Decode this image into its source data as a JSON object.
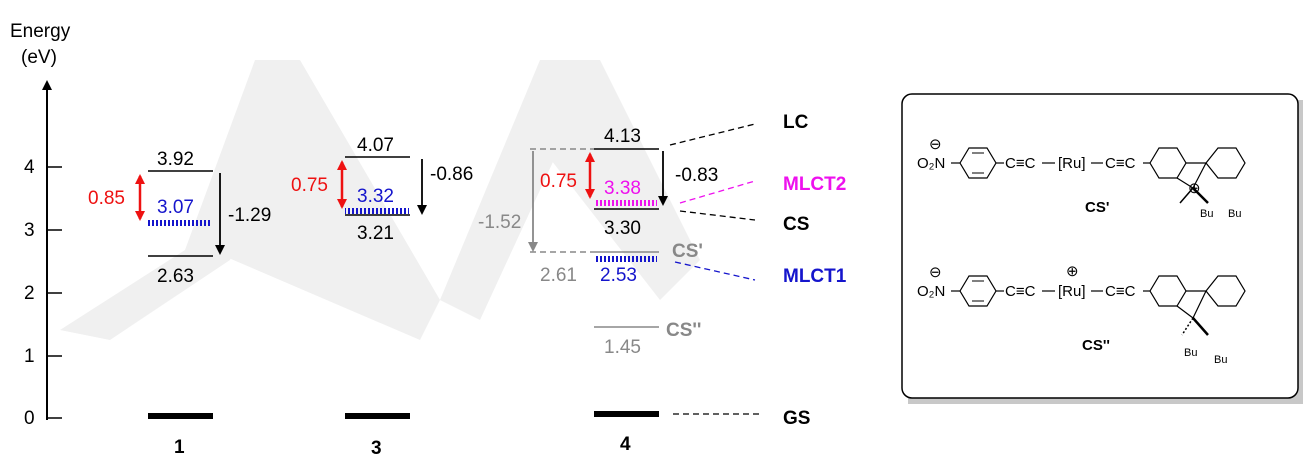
{
  "axis": {
    "title_line1": "Energy",
    "title_line2": "(eV)",
    "ticks": [
      "0",
      "1",
      "2",
      "3",
      "4"
    ]
  },
  "compounds": [
    "1",
    "3",
    "4"
  ],
  "levels": {
    "c1": {
      "upper": "3.92",
      "mlct": "3.07",
      "lower": "2.63",
      "gap": "0.85",
      "drop": "-1.29"
    },
    "c3": {
      "upper": "4.07",
      "mlct": "3.32",
      "lower": "3.21",
      "gap": "0.75",
      "drop": "-0.86"
    },
    "c4": {
      "lc": "4.13",
      "mlct2": "3.38",
      "cs": "3.30",
      "cs_prime": "2.61",
      "mlct1": "2.53",
      "cs_dprime": "1.45",
      "gap": "0.75",
      "drop_black": "-0.83",
      "drop_grey": "-1.52"
    }
  },
  "states": {
    "lc": "LC",
    "mlct2": "MLCT2",
    "cs": "CS",
    "mlct1": "MLCT1",
    "gs": "GS",
    "cs_prime": "CS'",
    "cs_dprime": "CS''"
  },
  "structures": {
    "top_label": "CS'",
    "bottom_label": "CS''",
    "minus": "⊖",
    "plus": "⊕",
    "nitro": "O₂N",
    "alkyne": "C≡C",
    "ru": "[Ru]",
    "bu": "Bu"
  },
  "colors": {
    "red": "#ee1111",
    "blue": "#1515cc",
    "magenta": "#ee11ee",
    "grey": "#888888",
    "black": "#000000"
  }
}
